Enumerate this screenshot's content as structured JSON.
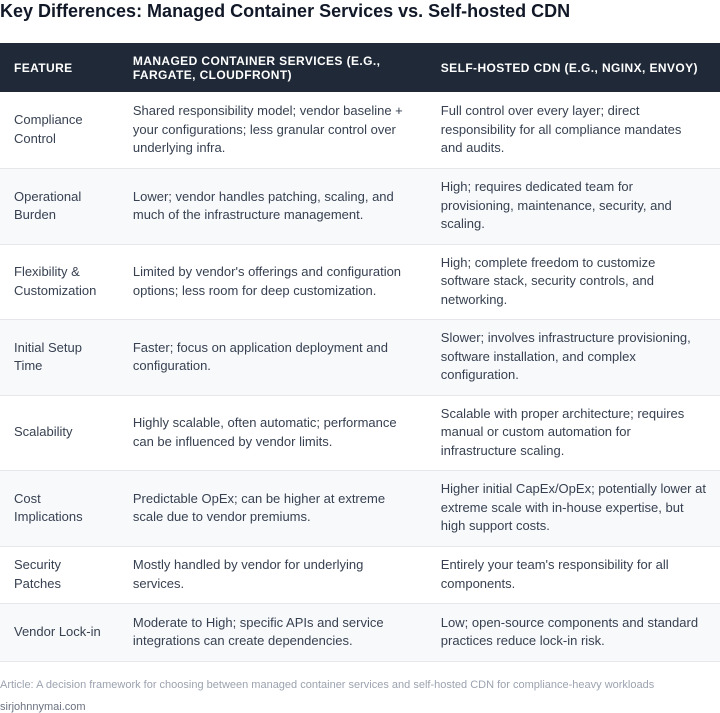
{
  "title": "Key Differences: Managed Container Services vs. Self-hosted CDN",
  "columns": [
    "FEATURE",
    "MANAGED CONTAINER SERVICES (E.G., FARGATE, CLOUDFRONT)",
    "SELF-HOSTED CDN (E.G., NGINX, ENVOY)"
  ],
  "rows": [
    {
      "feature": "Compliance Control",
      "managed": "Shared responsibility model; vendor baseline + your configurations; less granular control over underlying infra.",
      "self_hosted": "Full control over every layer; direct responsibility for all compliance mandates and audits."
    },
    {
      "feature": "Operational Burden",
      "managed": "Lower; vendor handles patching, scaling, and much of the infrastructure management.",
      "self_hosted": "High; requires dedicated team for provisioning, maintenance, security, and scaling."
    },
    {
      "feature": "Flexibility & Customization",
      "managed": "Limited by vendor's offerings and configuration options; less room for deep customization.",
      "self_hosted": "High; complete freedom to customize software stack, security controls, and networking."
    },
    {
      "feature": "Initial Setup Time",
      "managed": "Faster; focus on application deployment and configuration.",
      "self_hosted": "Slower; involves infrastructure provisioning, software installation, and complex configuration."
    },
    {
      "feature": "Scalability",
      "managed": "Highly scalable, often automatic; performance can be influenced by vendor limits.",
      "self_hosted": "Scalable with proper architecture; requires manual or custom automation for infrastructure scaling."
    },
    {
      "feature": "Cost Implications",
      "managed": "Predictable OpEx; can be higher at extreme scale due to vendor premiums.",
      "self_hosted": "Higher initial CapEx/OpEx; potentially lower at extreme scale with in-house expertise, but high support costs."
    },
    {
      "feature": "Security Patches",
      "managed": "Mostly handled by vendor for underlying services.",
      "self_hosted": "Entirely your team's responsibility for all components."
    },
    {
      "feature": "Vendor Lock-in",
      "managed": "Moderate to High; specific APIs and service integrations can create dependencies.",
      "self_hosted": "Low; open-source components and standard practices reduce lock-in risk."
    }
  ],
  "caption": "Article: A decision framework for choosing between managed container services and self-hosted CDN for compliance-heavy workloads",
  "source": "sirjohnnymai.com",
  "colors": {
    "header_bg": "#1f2937",
    "header_text": "#ffffff",
    "row_alt_bg": "#f8f9fb",
    "border": "#e5e7eb"
  }
}
